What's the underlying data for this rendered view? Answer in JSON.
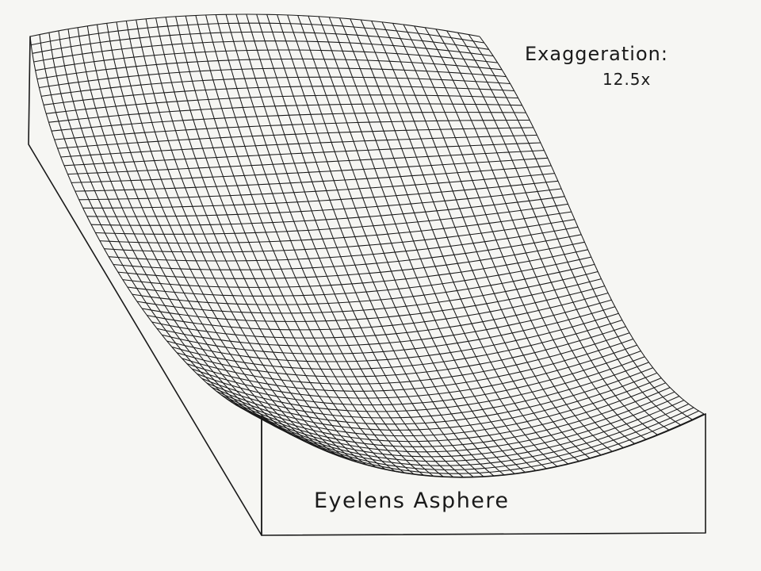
{
  "annotation": {
    "exaggeration_label": "Exaggeration:",
    "exaggeration_value": "12.5x"
  },
  "caption": "Eyelens Asphere",
  "colors": {
    "background": "#f6f6f3",
    "ink": "#1a1a1a"
  }
}
